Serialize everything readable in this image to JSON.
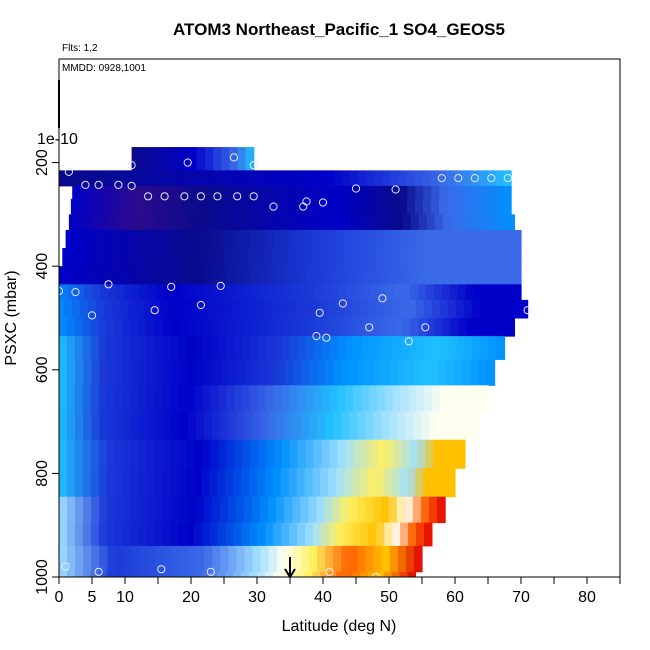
{
  "chart_data": {
    "type": "heatmap",
    "title": "ATOM3 Northeast_Pacific_1 SO4_GEOS5",
    "annotations": {
      "flights": "Flts: 1,2",
      "dates": "MMDD: 0928,1001",
      "top_label": "1e-10"
    },
    "xlabel": "Latitude (deg N)",
    "ylabel": "PSXC (mbar)",
    "xlim": [
      0,
      85
    ],
    "ylim": [
      1000,
      0
    ],
    "x_ticks": [
      0,
      5,
      10,
      20,
      30,
      40,
      50,
      60,
      70,
      80
    ],
    "y_ticks": [
      200,
      400,
      600,
      800,
      1000
    ],
    "arrow_latitude": 35,
    "colorscale": [
      "#2d0a8c",
      "#5a1ec8",
      "#0a0a8c",
      "#0000c8",
      "#1a3ad8",
      "#3a6ae8",
      "#0090ff",
      "#20c0ff",
      "#a0e0ff",
      "#fffff0",
      "#fff060",
      "#ffc000",
      "#ff6000",
      "#e00000"
    ],
    "bands": [
      {
        "p_top": 170,
        "p_bot": 215,
        "x_min": 11,
        "x_max": 29.5
      },
      {
        "p_top": 215,
        "p_bot": 245,
        "x_min": -1,
        "x_max": 68.5
      },
      {
        "p_top": 245,
        "p_bot": 270,
        "x_min": 2,
        "x_max": 68.5
      },
      {
        "p_top": 270,
        "p_bot": 300,
        "x_min": 1.8,
        "x_max": 68.5
      },
      {
        "p_top": 300,
        "p_bot": 330,
        "x_min": 1.5,
        "x_max": 69
      },
      {
        "p_top": 330,
        "p_bot": 365,
        "x_min": 1,
        "x_max": 70
      },
      {
        "p_top": 365,
        "p_bot": 400,
        "x_min": 0.5,
        "x_max": 70
      },
      {
        "p_top": 400,
        "p_bot": 435,
        "x_min": 0,
        "x_max": 70
      },
      {
        "p_top": 435,
        "p_bot": 465,
        "x_min": -1,
        "x_max": 70
      },
      {
        "p_top": 465,
        "p_bot": 500,
        "x_min": -0.5,
        "x_max": 71
      },
      {
        "p_top": 500,
        "p_bot": 535,
        "x_min": 0,
        "x_max": 69
      },
      {
        "p_top": 535,
        "p_bot": 580,
        "x_min": 0,
        "x_max": 67.5
      },
      {
        "p_top": 580,
        "p_bot": 630,
        "x_min": 0,
        "x_max": 66
      },
      {
        "p_top": 630,
        "p_bot": 680,
        "x_min": 0,
        "x_max": 65
      },
      {
        "p_top": 680,
        "p_bot": 735,
        "x_min": 0,
        "x_max": 63.5
      },
      {
        "p_top": 735,
        "p_bot": 790,
        "x_min": 0,
        "x_max": 61.5
      },
      {
        "p_top": 790,
        "p_bot": 845,
        "x_min": 0,
        "x_max": 60
      },
      {
        "p_top": 845,
        "p_bot": 895,
        "x_min": 0,
        "x_max": 58.5
      },
      {
        "p_top": 895,
        "p_bot": 940,
        "x_min": 0,
        "x_max": 56.5
      },
      {
        "p_top": 940,
        "p_bot": 990,
        "x_min": 0,
        "x_max": 55
      },
      {
        "p_top": 990,
        "p_bot": 1010,
        "x_min": 0,
        "x_max": 54
      }
    ],
    "points": [
      {
        "lat": 11,
        "p": 205
      },
      {
        "lat": 19.5,
        "p": 200
      },
      {
        "lat": 26.5,
        "p": 190
      },
      {
        "lat": 29.5,
        "p": 205
      },
      {
        "lat": 1.5,
        "p": 218
      },
      {
        "lat": 4,
        "p": 243
      },
      {
        "lat": 6,
        "p": 243
      },
      {
        "lat": 9,
        "p": 243
      },
      {
        "lat": 11,
        "p": 245
      },
      {
        "lat": 13.5,
        "p": 265
      },
      {
        "lat": 16,
        "p": 265
      },
      {
        "lat": 19,
        "p": 265
      },
      {
        "lat": 21.5,
        "p": 265
      },
      {
        "lat": 24,
        "p": 265
      },
      {
        "lat": 27,
        "p": 265
      },
      {
        "lat": 29.5,
        "p": 265
      },
      {
        "lat": 32.5,
        "p": 285
      },
      {
        "lat": 37,
        "p": 285
      },
      {
        "lat": 37.5,
        "p": 275
      },
      {
        "lat": 40,
        "p": 277
      },
      {
        "lat": 45,
        "p": 250
      },
      {
        "lat": 51,
        "p": 252
      },
      {
        "lat": 58,
        "p": 230
      },
      {
        "lat": 60.5,
        "p": 230
      },
      {
        "lat": 63,
        "p": 230
      },
      {
        "lat": 65.5,
        "p": 230
      },
      {
        "lat": 68,
        "p": 230
      },
      {
        "lat": 7.5,
        "p": 435
      },
      {
        "lat": 17,
        "p": 440
      },
      {
        "lat": 24.5,
        "p": 438
      },
      {
        "lat": 0,
        "p": 448
      },
      {
        "lat": 2.5,
        "p": 450
      },
      {
        "lat": 14.5,
        "p": 485
      },
      {
        "lat": 21.5,
        "p": 475
      },
      {
        "lat": 5,
        "p": 495
      },
      {
        "lat": 39.5,
        "p": 490
      },
      {
        "lat": 43,
        "p": 472
      },
      {
        "lat": 49,
        "p": 462
      },
      {
        "lat": 47,
        "p": 518
      },
      {
        "lat": 55.5,
        "p": 518
      },
      {
        "lat": 53,
        "p": 545
      },
      {
        "lat": 71,
        "p": 485
      },
      {
        "lat": 39,
        "p": 535
      },
      {
        "lat": 40.5,
        "p": 538
      },
      {
        "lat": 1,
        "p": 980
      },
      {
        "lat": 6,
        "p": 990
      },
      {
        "lat": 15.5,
        "p": 985
      },
      {
        "lat": 23,
        "p": 990
      },
      {
        "lat": 41,
        "p": 990
      },
      {
        "lat": 48,
        "p": 1000
      }
    ]
  }
}
